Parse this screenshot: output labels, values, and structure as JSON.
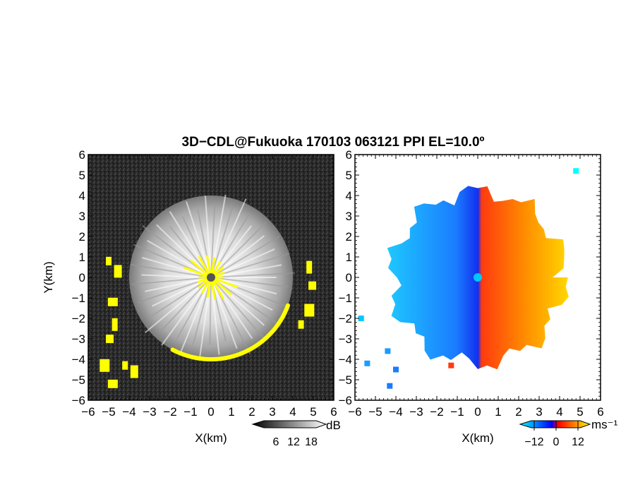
{
  "title": "3D−CDL@Fukuoka 170103 063121 PPI EL=10.0º",
  "chart_data": [
    {
      "type": "heatmap",
      "panel": "reflectivity",
      "xlabel": "X(km)",
      "ylabel": "Y(km)",
      "xlim": [
        -6,
        6
      ],
      "ylim": [
        -6,
        6
      ],
      "xticks": [
        "−6",
        "−5",
        "−4",
        "−3",
        "−2",
        "−1",
        "0",
        "1",
        "2",
        "3",
        "4",
        "5",
        "6"
      ],
      "yticks": [
        "−6",
        "−5",
        "−4",
        "−3",
        "−2",
        "−1",
        "0",
        "1",
        "2",
        "3",
        "4",
        "5",
        "6"
      ],
      "echo_radius_km": 4.0,
      "radar_location": [
        0,
        0
      ],
      "colorbar": {
        "label": "dB",
        "ticks": [
          "6",
          "12",
          "18"
        ],
        "range": [
          0,
          20
        ],
        "colormap": "grayscale",
        "colors": [
          "#000000",
          "#ffffff"
        ]
      },
      "overlay_color": "#ffff00"
    },
    {
      "type": "heatmap",
      "panel": "doppler-velocity",
      "xlabel": "X(km)",
      "xlim": [
        -6,
        6
      ],
      "ylim": [
        -6,
        6
      ],
      "xticks": [
        "−6",
        "−5",
        "−4",
        "−3",
        "−2",
        "−1",
        "0",
        "1",
        "2",
        "3",
        "4",
        "5",
        "6"
      ],
      "yticks": [
        "−6",
        "−5",
        "−4",
        "−3",
        "−2",
        "−1",
        "0",
        "1",
        "2",
        "3",
        "4",
        "5",
        "6"
      ],
      "echo_radius_km": 4.2,
      "radar_location": [
        0,
        0
      ],
      "colorbar": {
        "label": "ms⁻¹",
        "ticks": [
          "−12",
          "0",
          "12"
        ],
        "range": [
          -15,
          15
        ],
        "colormap": "cyan-blue-red-yellow",
        "colors": [
          "#00ffff",
          "#0000ff",
          "#ff0000",
          "#ffff00"
        ]
      }
    }
  ]
}
